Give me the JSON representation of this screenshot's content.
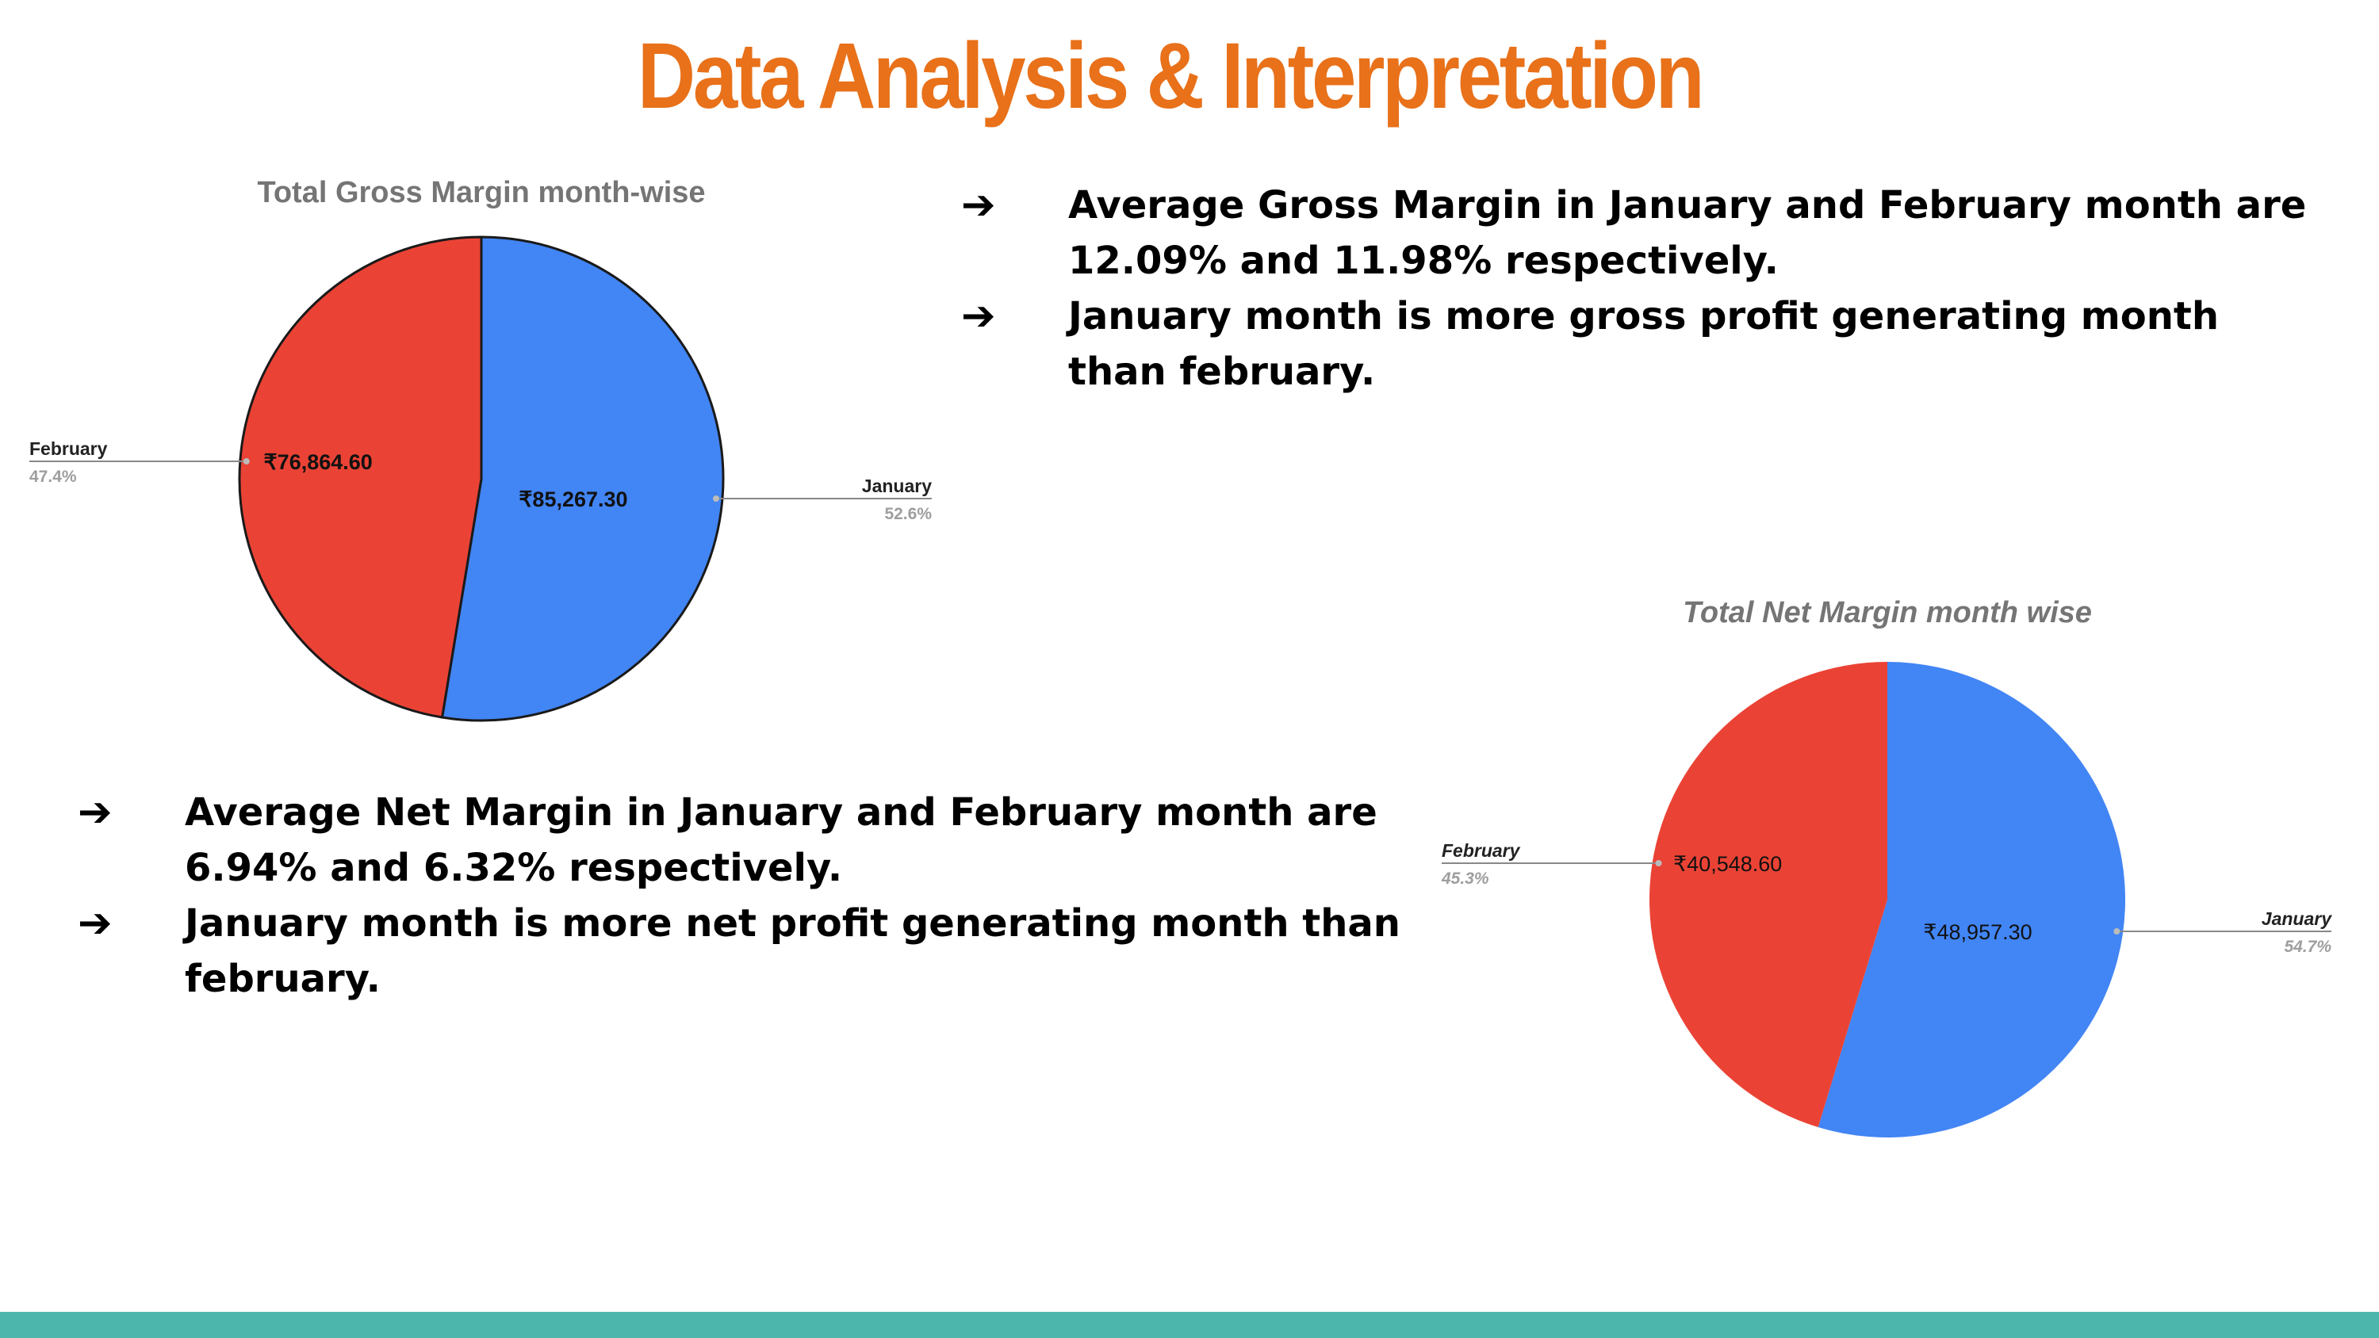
{
  "slide": {
    "title": "Data Analysis & Interpretation",
    "title_color": "#E8711A",
    "footer_color": "#4DB6AC",
    "arrow_glyph": "➔"
  },
  "bullets_gross": [
    "Average Gross Margin in January and February month are 12.09% and 11.98% respectively.",
    "January month is more gross profit generating month than february."
  ],
  "bullets_net": [
    "Average Net Margin in January and February month are 6.94% and 6.32% respectively.",
    "January month is more net profit generating month than february."
  ],
  "chart_data": [
    {
      "type": "pie",
      "title": "Total Gross Margin month-wise",
      "title_style": "normal",
      "slice_border": true,
      "bold_values": true,
      "slices": [
        {
          "name": "January",
          "value_label": "₹85,267.30",
          "value": 85267.3,
          "percent_label": "52.6%",
          "color": "#4285F4"
        },
        {
          "name": "February",
          "value_label": "₹76,864.60",
          "value": 76864.6,
          "percent_label": "47.4%",
          "color": "#EA4335"
        }
      ]
    },
    {
      "type": "pie",
      "title": "Total Net Margin month wise",
      "title_style": "italic",
      "slice_border": false,
      "bold_values": false,
      "slices": [
        {
          "name": "January",
          "value_label": "₹48,957.30",
          "value": 48957.3,
          "percent_label": "54.7%",
          "color": "#4285F4"
        },
        {
          "name": "February",
          "value_label": "₹40,548.60",
          "value": 40548.6,
          "percent_label": "45.3%",
          "color": "#EA4335"
        }
      ]
    }
  ]
}
